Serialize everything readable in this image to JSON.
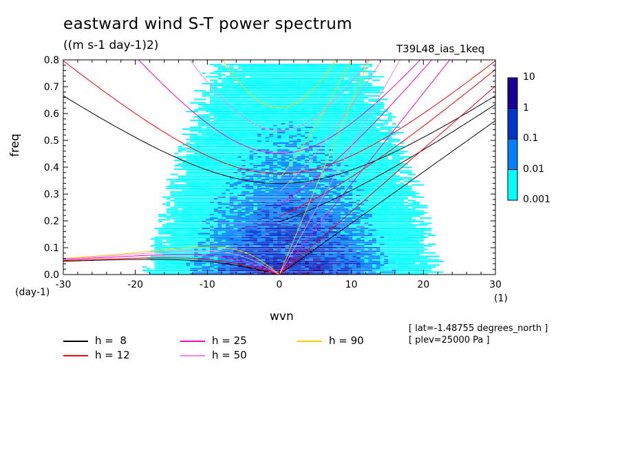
{
  "chart_data": {
    "type": "heatmap",
    "title": "eastward wind S-T power spectrum",
    "units": "((m s-1 day-1)2)",
    "run_label": "T39L48_ias_1keq",
    "xlabel": "wvn",
    "ylabel": "freq",
    "x_unit": "(1)",
    "y_unit": "(day-1)",
    "xlim": [
      -30,
      30
    ],
    "ylim": [
      0,
      0.8
    ],
    "x_ticks": [
      "-30",
      "-20",
      "-10",
      "0",
      "10",
      "20",
      "30"
    ],
    "y_ticks": [
      "0.0",
      "0.1",
      "0.2",
      "0.3",
      "0.4",
      "0.5",
      "0.6",
      "0.7",
      "0.8"
    ],
    "colorbar": {
      "levels": [
        "0.001",
        "0.01",
        "0.1",
        "1",
        "10"
      ],
      "colors": [
        "#00ffff",
        "#0080ff",
        "#0033cc",
        "#1a0099"
      ]
    },
    "dispersion_curves": [
      {
        "label": "h =  8",
        "h": 8,
        "color": "#000000"
      },
      {
        "label": "h = 12",
        "h": 12,
        "color": "#ff0000"
      },
      {
        "label": "h = 25",
        "h": 25,
        "color": "#ff00cc"
      },
      {
        "label": "h = 50",
        "h": 50,
        "color": "#ee88ee"
      },
      {
        "label": "h = 90",
        "h": 90,
        "color": "#ffcc00"
      }
    ],
    "annotations": [
      "[ lat=-1.48755 degrees_north ]",
      "[ plev=25000 Pa ]"
    ]
  }
}
